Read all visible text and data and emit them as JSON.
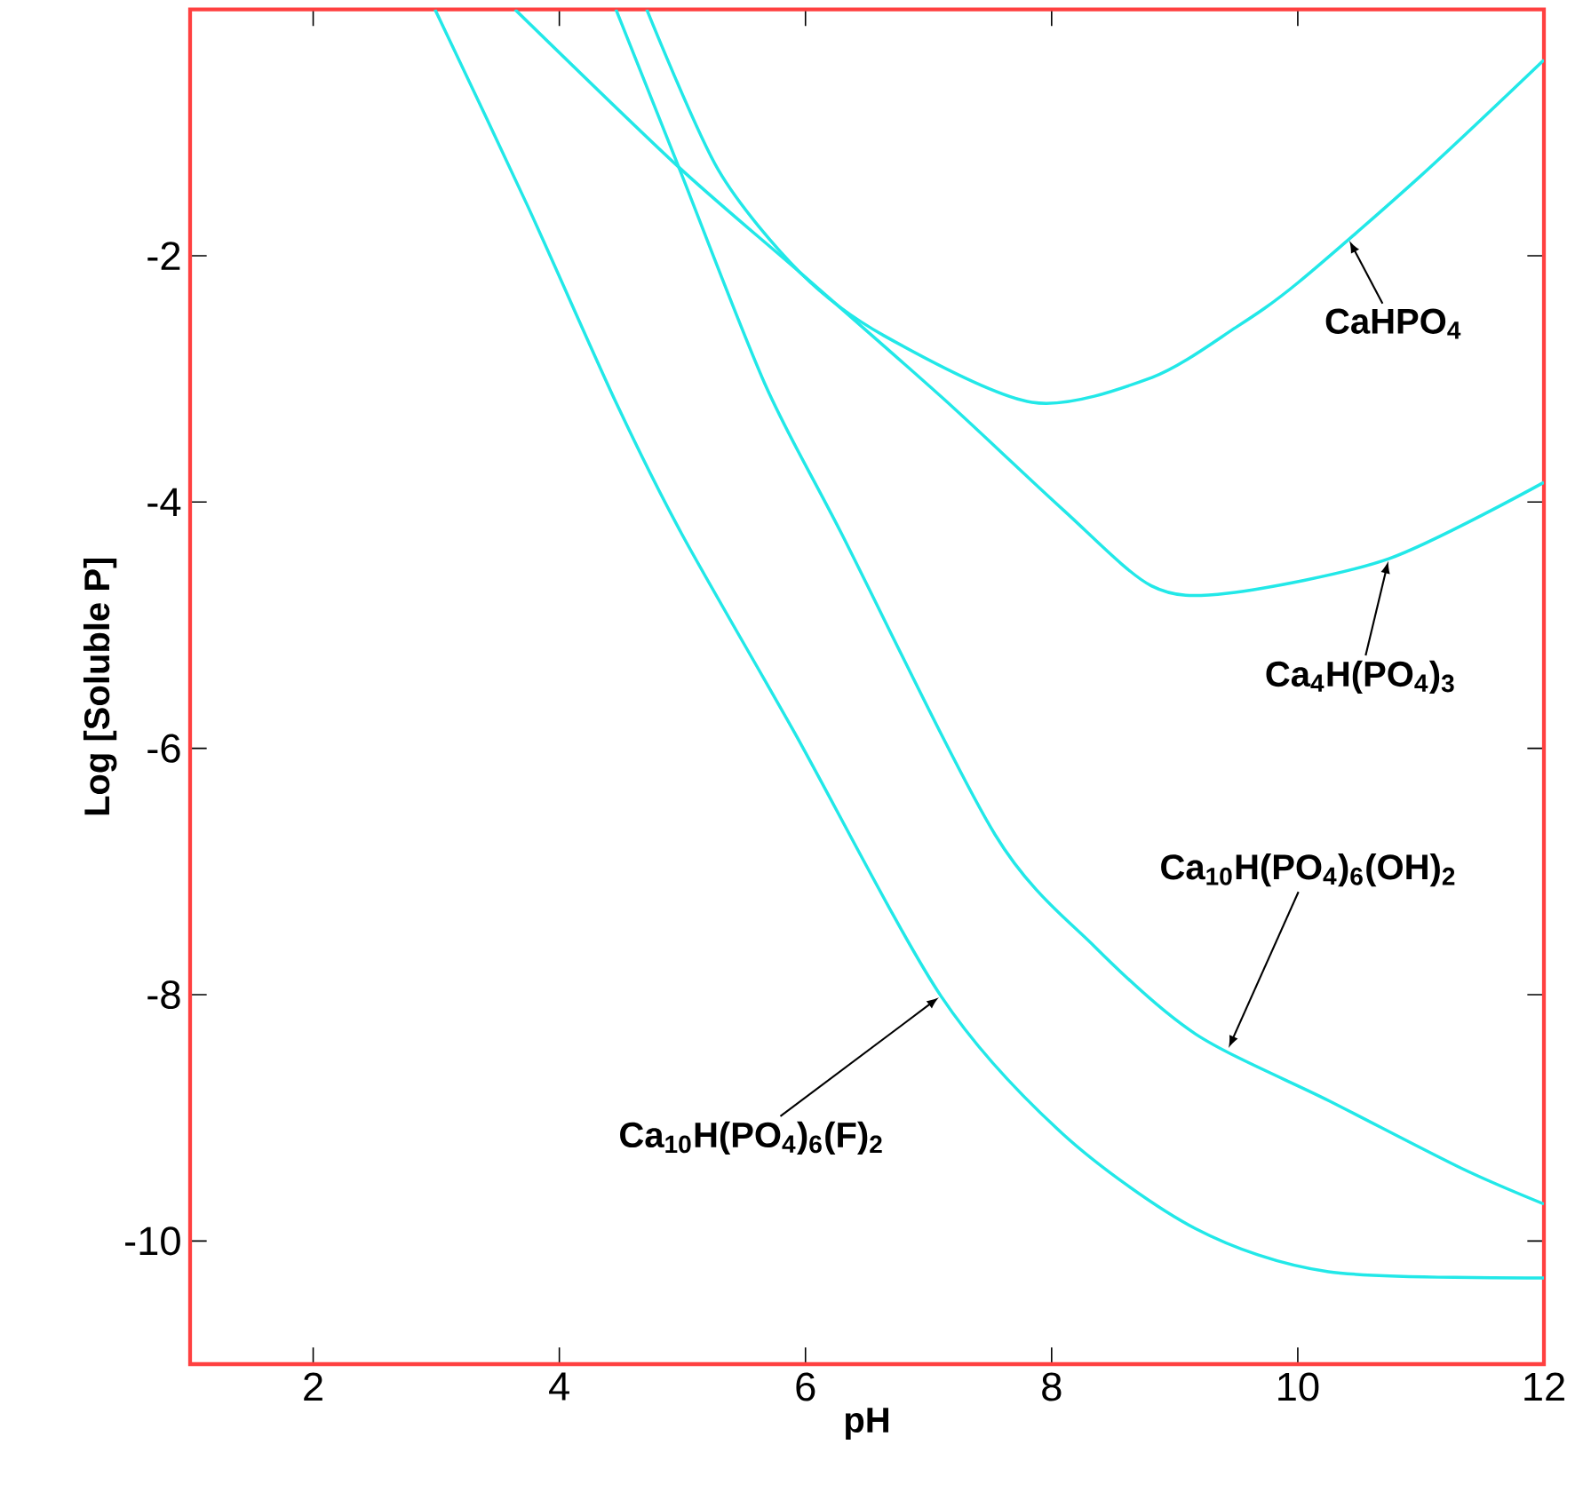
{
  "chart_data": {
    "type": "line",
    "xlabel": "pH",
    "ylabel": "Log [Soluble P]",
    "xlim": [
      1,
      12
    ],
    "ylim": [
      -11,
      0
    ],
    "xticks": [
      2,
      4,
      6,
      8,
      10,
      12
    ],
    "yticks": [
      -2,
      -4,
      -6,
      -8,
      -10
    ],
    "series": [
      {
        "color": "#22e8e8",
        "x": [
          4.71,
          5.29,
          5.96,
          6.64,
          7.84,
          8.81,
          9.5,
          10,
          11,
          12
        ],
        "values": [
          0,
          -1.3,
          -2.14,
          -2.65,
          -3.19,
          -2.99,
          -2.58,
          -2.22,
          -1.35,
          -0.41
        ]
      },
      {
        "color": "#22e8e8",
        "x": [
          3.64,
          4.97,
          5.96,
          7.12,
          8.09,
          8.81,
          9.43,
          10.74,
          12
        ],
        "values": [
          0,
          -1.28,
          -2.14,
          -3.16,
          -4.06,
          -4.68,
          -4.74,
          -4.46,
          -3.84
        ]
      },
      {
        "color": "#22e8e8",
        "x": [
          4.46,
          4.97,
          5.67,
          6.29,
          7.54,
          8.35,
          9.17,
          10.25,
          11.33,
          12
        ],
        "values": [
          0,
          -1.28,
          -3.04,
          -4.25,
          -6.7,
          -7.61,
          -8.32,
          -8.86,
          -9.41,
          -9.7
        ]
      },
      {
        "color": "#22e8e8",
        "x": [
          2.99,
          3.74,
          4.46,
          4.99,
          5.91,
          7.1,
          8.09,
          9.17,
          10.25,
          12
        ],
        "values": [
          0,
          -1.59,
          -3.19,
          -4.25,
          -5.87,
          -8.01,
          -9.13,
          -9.9,
          -10.25,
          -10.3
        ]
      }
    ],
    "annotations": [
      {
        "text": "CaHPO$_{4}$",
        "x": 10.41,
        "y": -1.86
      },
      {
        "text": "Ca$_{4}$H(PO$_{4}$)$_{3}$",
        "x": 10.74,
        "y": -4.46
      },
      {
        "text": "Ca$_{10}$H(PO$_{4}$)$_{6}$(OH)$_{2}$",
        "x": 9.43,
        "y": -8.45
      },
      {
        "text": "Ca$_{10}$H(PO$_{4}$)$_{6}$(F)$_{2}$",
        "x": 7.1,
        "y": -8.01
      }
    ]
  }
}
